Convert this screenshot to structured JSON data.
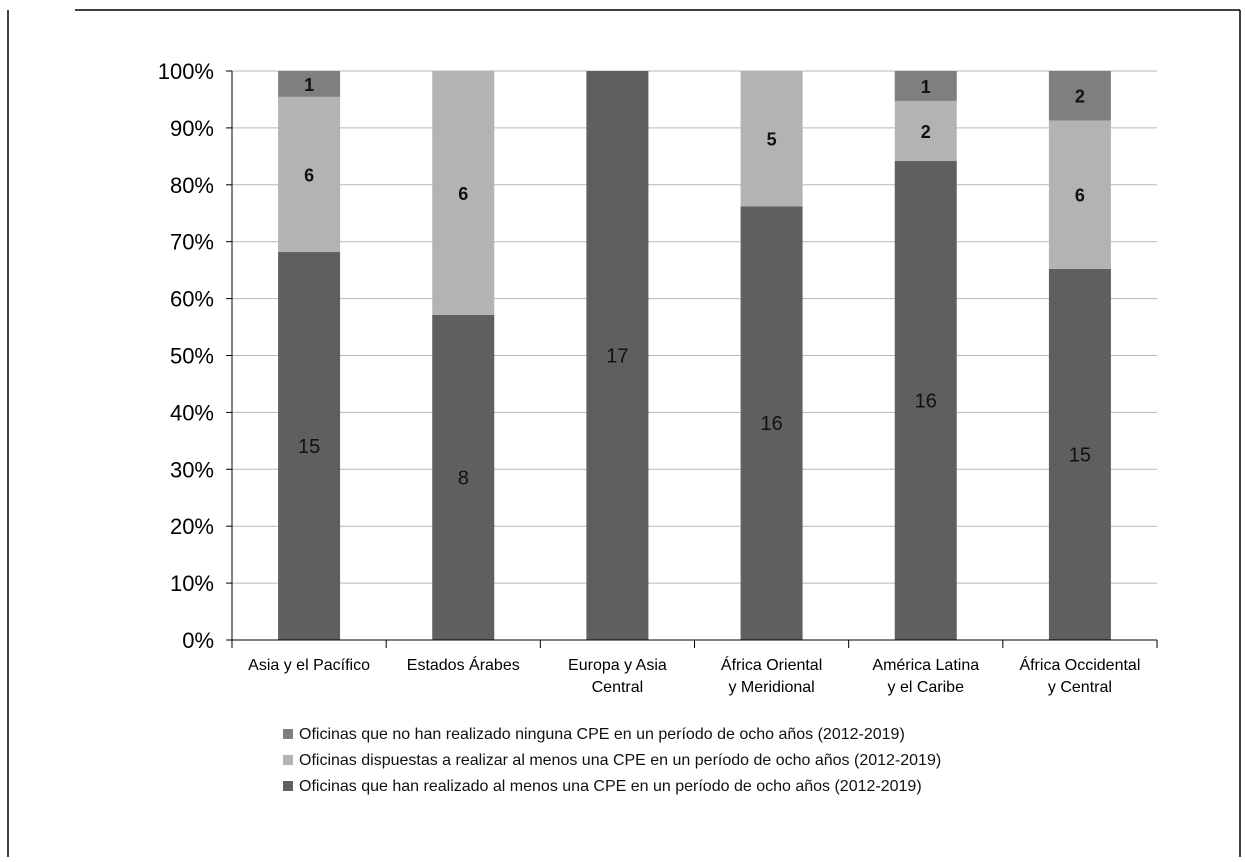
{
  "chart_data": {
    "type": "bar",
    "stacked": true,
    "percent_stacked": true,
    "categories": [
      [
        "Asia y el Pacífico"
      ],
      [
        "Estados Árabes"
      ],
      [
        "Europa y Asia",
        "Central"
      ],
      [
        "África Oriental",
        "y Meridional"
      ],
      [
        "América Latina",
        "y el Caribe"
      ],
      [
        "África Occidental",
        "y Central"
      ]
    ],
    "series": [
      {
        "name": "Oficinas que han realizado al menos una CPE en un período de ocho años (2012-2019)",
        "values": [
          15,
          8,
          17,
          16,
          16,
          15
        ],
        "color": "#5f5f5f"
      },
      {
        "name": "Oficinas dispuestas a realizar al menos una CPE en un período de ocho años (2012-2019)",
        "values": [
          6,
          6,
          0,
          5,
          2,
          6
        ],
        "color": "#b3b3b3"
      },
      {
        "name": "Oficinas que no han realizado ninguna CPE en un período de ocho años (2012-2019)",
        "values": [
          1,
          0,
          0,
          0,
          1,
          2
        ],
        "color": "#7f7f7f"
      }
    ],
    "legend_order": [
      2,
      1,
      0
    ],
    "yticks": [
      "0%",
      "10%",
      "20%",
      "30%",
      "40%",
      "50%",
      "60%",
      "70%",
      "80%",
      "90%",
      "100%"
    ],
    "ylim": [
      0,
      100
    ],
    "grid": true,
    "legend_position": "bottom",
    "title": "",
    "xlabel": "",
    "ylabel": ""
  }
}
